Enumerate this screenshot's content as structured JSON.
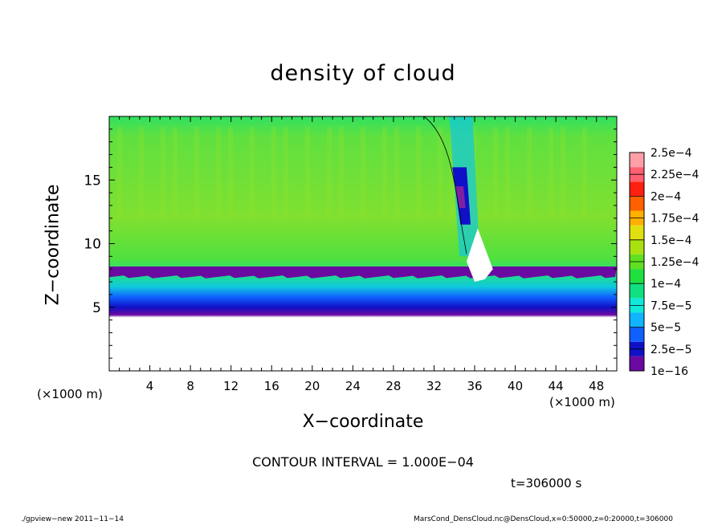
{
  "title": "density of cloud",
  "x_label": "X−coordinate",
  "y_label": "Z−coordinate",
  "x_unit_left": "(×1000 m)",
  "x_unit_right": "(×1000 m)",
  "contour_interval_text": "CONTOUR INTERVAL = 1.000E−04",
  "time_text": "t=306000 s",
  "footer_left": "./gpview−new   2011−11−14",
  "footer_right": "MarsCond_DensCloud.nc@DensCloud,x=0:50000,z=0:20000,t=306000",
  "chart_data": {
    "type": "heatmap",
    "title": "density of cloud",
    "xlabel": "X-coordinate",
    "ylabel": "Z-coordinate",
    "x_unit": "x1000 m",
    "xlim": [
      0,
      50
    ],
    "ylim": [
      0,
      20
    ],
    "x_ticks": [
      4,
      8,
      12,
      16,
      20,
      24,
      28,
      32,
      36,
      40,
      44,
      48
    ],
    "y_ticks": [
      5,
      10,
      15
    ],
    "colorbar": {
      "labels": [
        "1e−16",
        "2.5e−5",
        "5e−5",
        "7.5e−5",
        "1e−4",
        "1.25e−4",
        "1.5e−4",
        "1.75e−4",
        "2e−4",
        "2.25e−4",
        "2.5e−4"
      ],
      "colors": [
        "#6a0aa0",
        "#1010c8",
        "#1060ff",
        "#10b4ff",
        "#10e8d8",
        "#10e080",
        "#20e040",
        "#60e020",
        "#a8e010",
        "#e0e010",
        "#ffb000",
        "#ff6000",
        "#ff2010",
        "#ff6070",
        "#ffa0a8"
      ]
    },
    "field_description_levels": {
      "cloud_base_z": 7.5,
      "contour_1e-4_z": 10.3,
      "plume_x_range": [
        30,
        38
      ]
    },
    "contour_interval": 0.0001,
    "time_s": 306000
  }
}
